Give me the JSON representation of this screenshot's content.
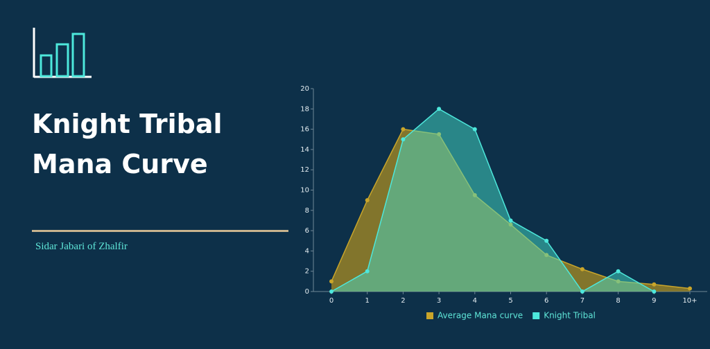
{
  "title": "Knight Tribal Mana Curve",
  "author": "Sidar Jabari of Zhalfir",
  "chart_data": {
    "type": "area",
    "categories": [
      "0",
      "1",
      "2",
      "3",
      "4",
      "5",
      "6",
      "7",
      "8",
      "9",
      "10+"
    ],
    "series": [
      {
        "name": "Average Mana curve",
        "color": "#c9a52a",
        "values": [
          1,
          9,
          16,
          15.5,
          9.5,
          6.6,
          3.6,
          2.2,
          1,
          0.7,
          0.3
        ]
      },
      {
        "name": "Knight Tribal",
        "color": "#4de8dc",
        "values": [
          0,
          2,
          15,
          18,
          16,
          7,
          5,
          0,
          2,
          0,
          null
        ]
      }
    ],
    "ylim": [
      0,
      20
    ],
    "yticks": [
      0,
      2,
      4,
      6,
      8,
      10,
      12,
      14,
      16,
      18,
      20
    ],
    "legend": "bottom"
  }
}
